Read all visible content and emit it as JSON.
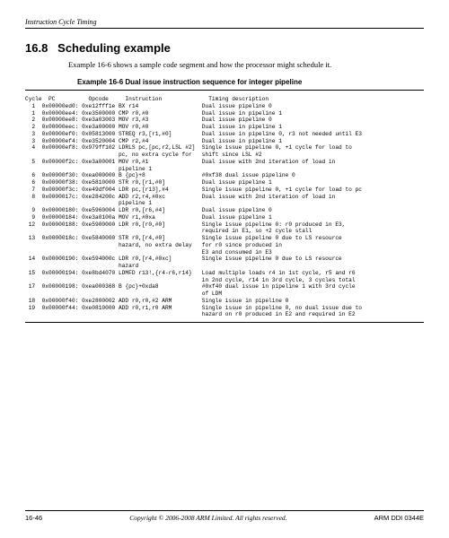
{
  "header": {
    "running_title": "Instruction Cycle Timing"
  },
  "section": {
    "number": "16.8",
    "title": "Scheduling example",
    "intro": "Example 16-6 shows a sample code segment and how the processor might schedule it.",
    "example_caption": "Example 16-6 Dual issue instruction sequence for integer pipeline"
  },
  "code": {
    "header_line": "Cycle  PC          Opcode     Instruction              Timing description",
    "rows": [
      {
        "c": "  1",
        "pc": "0x00000ed0:",
        "op": "0xe12fff1e",
        "ins": "BX r14",
        "desc": "Dual issue pipeline 0"
      },
      {
        "c": "  1",
        "pc": "0x00000ee4:",
        "op": "0xe3500000",
        "ins": "CMP r0,#0",
        "desc": "Dual issue in pipeline 1"
      },
      {
        "c": "  2",
        "pc": "0x00000ee8:",
        "op": "0xe3a03003",
        "ins": "MOV r3,#3",
        "desc": "Dual issue pipeline 0"
      },
      {
        "c": "  2",
        "pc": "0x00000eec:",
        "op": "0xe3a00000",
        "ins": "MOV r0,#0",
        "desc": "Dual issue in pipeline 1"
      },
      {
        "c": "  3",
        "pc": "0x00000ef0:",
        "op": "0x05813000",
        "ins": "STREQ r3,[r1,#0]",
        "desc": "Dual issue in pipeline 0, r3 not needed until E3"
      },
      {
        "c": "  3",
        "pc": "0x00000ef4:",
        "op": "0xe3520004",
        "ins": "CMP r2,#4",
        "desc": "Dual issue in pipeline 1"
      },
      {
        "c": "  4",
        "pc": "0x00000ef8:",
        "op": "0x979ff102",
        "ins": "LDRLS pc,[pc,r2,LSL #2]",
        "desc": "Single issue pipeline 0, +1 cycle for load to"
      },
      {
        "c": "   ",
        "pc": "",
        "op": "",
        "ins": "pc, no extra cycle for",
        "desc": "shift since LSL #2"
      },
      {
        "c": "  5",
        "pc": "0x00000f2c:",
        "op": "0xe3a00001",
        "ins": "MOV r0,#1",
        "desc": "Dual issue with 2nd iteration of load in"
      },
      {
        "c": "   ",
        "pc": "",
        "op": "",
        "ins": "pipeline 1",
        "desc": ""
      },
      {
        "c": "  6",
        "pc": "0x00000f30:",
        "op": "0xea000000",
        "ins": "B {pc}+8",
        "desc": "#0xf38 dual issue pipeline 0"
      },
      {
        "c": "  6",
        "pc": "0x00000f38:",
        "op": "0xe5810000",
        "ins": "STR r0,[r1,#0]",
        "desc": "Dual issue pipeline 1"
      },
      {
        "c": "  7",
        "pc": "0x00000f3c:",
        "op": "0xe49df004",
        "ins": "LDR pc,[r13],#4",
        "desc": "Single issue pipeline 0, +1 cycle for load to pc"
      },
      {
        "c": "  8",
        "pc": "0x0000017c:",
        "op": "0xe284200c",
        "ins": "ADD r2,r4,#0xc",
        "desc": "Dual issue with 2nd iteration of load in"
      },
      {
        "c": "   ",
        "pc": "",
        "op": "",
        "ins": "pipeline 1",
        "desc": ""
      },
      {
        "c": "  9",
        "pc": "0x00000180:",
        "op": "0xe5960004",
        "ins": "LDR r0,[r6,#4]",
        "desc": "Dual issue pipeline 0"
      },
      {
        "c": "  9",
        "pc": "0x00000184:",
        "op": "0xe3a0100a",
        "ins": "MOV r1,#0xa",
        "desc": "Dual issue pipeline 1"
      },
      {
        "c": " 12",
        "pc": "0x00000188:",
        "op": "0xe5900000",
        "ins": "LDR r0,[r0,#0]",
        "desc": "Single issue pipeline 0: r0 produced in E3,"
      },
      {
        "c": "   ",
        "pc": "",
        "op": "",
        "ins": "",
        "desc": "required in E1, so +2 cycle stall"
      },
      {
        "c": " 13",
        "pc": "0x0000018c:",
        "op": "0xe5840000",
        "ins": "STR r0,[r4,#0]",
        "desc": "Single issue pipeline 0 due to LS resource"
      },
      {
        "c": "   ",
        "pc": "",
        "op": "",
        "ins": "hazard, no extra delay",
        "desc": "for r0 since produced in"
      },
      {
        "c": "   ",
        "pc": "",
        "op": "",
        "ins": "",
        "desc": "E3 and consumed in E3"
      },
      {
        "c": " 14",
        "pc": "0x00000190:",
        "op": "0xe594000c",
        "ins": "LDR r0,[r4,#0xc]",
        "desc": "Single issue pipeline 0 due to LS resource"
      },
      {
        "c": "   ",
        "pc": "",
        "op": "",
        "ins": "hazard",
        "desc": ""
      },
      {
        "c": " 15",
        "pc": "0x00000194:",
        "op": "0xe8bd4070",
        "ins": "LDMFD r13!,{r4-r6,r14}",
        "desc": "Load multiple loads r4 in 1st cycle, r5 and r6"
      },
      {
        "c": "   ",
        "pc": "",
        "op": "",
        "ins": "",
        "desc": "in 2nd cycle, r14 in 3rd cycle, 3 cycles total"
      },
      {
        "c": " 17",
        "pc": "0x00000198:",
        "op": "0xea000368",
        "ins": "B {pc}+0xda8",
        "desc": "#0xf40 dual issue in pipeline 1 with 3rd cycle"
      },
      {
        "c": "   ",
        "pc": "",
        "op": "",
        "ins": "",
        "desc": "of LDM"
      },
      {
        "c": " 18",
        "pc": "0x00000f40:",
        "op": "0xe2800002",
        "ins": "ADD r0,r0,#2 ARM",
        "desc": "Single issue in pipeline 0"
      },
      {
        "c": " 19",
        "pc": "0x00000f44:",
        "op": "0xe0810000",
        "ins": "ADD r0,r1,r0 ARM",
        "desc": "Single issue in pipeline 0, no dual issue due to"
      },
      {
        "c": "   ",
        "pc": "",
        "op": "",
        "ins": "",
        "desc": "hazard on r0 produced in E2 and required in E2"
      }
    ]
  },
  "footer": {
    "left": "16-46",
    "center": "Copyright © 2006-2008 ARM Limited. All rights reserved.",
    "right": "ARM DDI 0344E"
  }
}
